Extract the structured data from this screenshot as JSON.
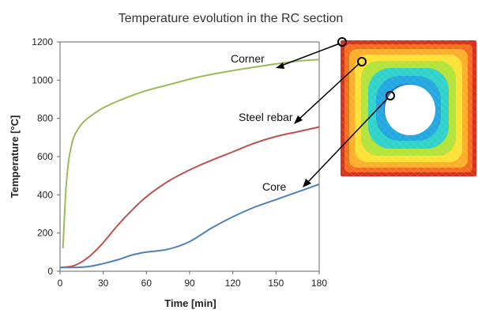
{
  "chart_data": {
    "type": "line",
    "title": "Temperature evolution in the RC section",
    "xlabel": "Time [min]",
    "ylabel": "Temperature [°C]",
    "xlim": [
      0,
      180
    ],
    "ylim": [
      0,
      1200
    ],
    "xticks": [
      0,
      30,
      60,
      90,
      120,
      150,
      180
    ],
    "yticks": [
      0,
      200,
      400,
      600,
      800,
      1000,
      1200
    ],
    "grid": false,
    "series": [
      {
        "name": "Corner",
        "color": "#9bbb59",
        "x": [
          2,
          4,
          6,
          8,
          10,
          15,
          20,
          30,
          45,
          60,
          75,
          90,
          105,
          120,
          135,
          150,
          165,
          180
        ],
        "y": [
          120,
          420,
          580,
          660,
          710,
          770,
          805,
          855,
          905,
          945,
          975,
          1005,
          1030,
          1050,
          1068,
          1085,
          1100,
          1108
        ]
      },
      {
        "name": "Steel rebar",
        "color": "#c0504d",
        "x": [
          0,
          10,
          20,
          30,
          40,
          50,
          60,
          75,
          90,
          105,
          120,
          135,
          150,
          165,
          180
        ],
        "y": [
          20,
          30,
          75,
          150,
          240,
          320,
          390,
          470,
          530,
          580,
          625,
          670,
          705,
          730,
          755
        ]
      },
      {
        "name": "Core",
        "color": "#4f81bd",
        "x": [
          0,
          10,
          20,
          30,
          40,
          50,
          60,
          75,
          90,
          105,
          120,
          135,
          150,
          165,
          180
        ],
        "y": [
          20,
          20,
          25,
          40,
          60,
          85,
          100,
          115,
          155,
          225,
          285,
          335,
          375,
          415,
          455
        ]
      }
    ],
    "annotations": [
      {
        "text": "Corner",
        "target": "corner"
      },
      {
        "text": "Steel rebar",
        "target": "rebar"
      },
      {
        "text": "Core",
        "target": "core"
      }
    ]
  },
  "inset": {
    "kind": "temperature-contour-cross-section",
    "colors": [
      "#d7301f",
      "#f46d1f",
      "#fdae2a",
      "#ffe135",
      "#b4e33a",
      "#2fd3c9",
      "#22a7e0",
      "#1f6fd8",
      "#0a3fb8",
      "#ffffff"
    ]
  }
}
